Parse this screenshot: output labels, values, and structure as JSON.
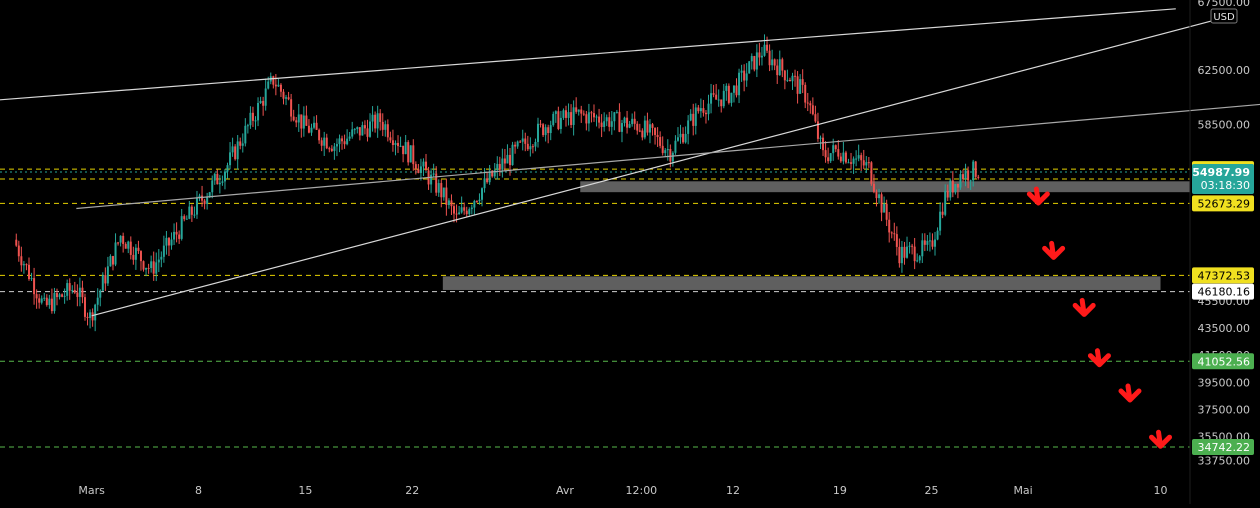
{
  "currency_label": "USD",
  "chart_data": {
    "type": "candlestick",
    "y_axis": {
      "range": [
        32900,
        67500
      ],
      "tick_labels": [
        "67500.00",
        "62500.00",
        "58500.00",
        "45500.00",
        "43500.00",
        "41500.00",
        "39500.00",
        "37500.00",
        "35500.00",
        "33750.00"
      ]
    },
    "x_axis": {
      "labels": [
        "Mars",
        "8",
        "15",
        "22",
        "Avr",
        "12:00",
        "12",
        "19",
        "25",
        "Mai",
        "10"
      ]
    },
    "current_price": {
      "value": 54987.99,
      "label": "54987.99",
      "countdown": "03:18:30"
    },
    "horizontal_levels": [
      {
        "value": 55199.53,
        "label": "55199.53",
        "style": "yellow"
      },
      {
        "value": 54472.51,
        "label": "54472.51",
        "style": "yellow"
      },
      {
        "value": 52673.29,
        "label": "52673.29",
        "style": "yellow"
      },
      {
        "value": 47372.53,
        "label": "47372.53",
        "style": "yellow"
      },
      {
        "value": 46180.16,
        "label": "46180.16",
        "style": "white"
      },
      {
        "value": 41052.56,
        "label": "41052.56",
        "style": "green"
      },
      {
        "value": 34742.22,
        "label": "34742.22",
        "style": "green"
      }
    ],
    "zones": [
      {
        "from": "2021-04-02",
        "to": "2021-05-15",
        "low": 53500,
        "high": 54300
      },
      {
        "from": "2021-03-24",
        "to": "2021-05-10",
        "low": 46300,
        "high": 47300
      }
    ],
    "trendlines": [
      {
        "p1": [
          "2021-02-23",
          60300
        ],
        "p2": [
          "2021-05-11",
          67000
        ],
        "color": "#d8d8d8"
      },
      {
        "p1": [
          "2021-03-01",
          44400
        ],
        "p2": [
          "2021-05-14",
          66300
        ],
        "color": "#d8d8d8"
      },
      {
        "p1": [
          "2021-02-28",
          52300
        ],
        "p2": [
          "2021-05-23",
          60600
        ],
        "color": "#a8a8a8"
      }
    ],
    "projection_arrows": [
      {
        "date": "2021-05-02",
        "value": 52700
      },
      {
        "date": "2021-05-03",
        "value": 48700
      },
      {
        "date": "2021-05-05",
        "value": 44500
      },
      {
        "date": "2021-05-06",
        "value": 40800
      },
      {
        "date": "2021-05-08",
        "value": 38200
      },
      {
        "date": "2021-05-10",
        "value": 34800
      }
    ],
    "key_prices": [
      [
        "2021-02-24",
        50000
      ],
      [
        "2021-02-26",
        45000
      ],
      [
        "2021-02-28",
        46500
      ],
      [
        "2021-03-01",
        44300
      ],
      [
        "2021-03-03",
        50300
      ],
      [
        "2021-03-05",
        47800
      ],
      [
        "2021-03-07",
        51000
      ],
      [
        "2021-03-10",
        55500
      ],
      [
        "2021-03-13",
        61800
      ],
      [
        "2021-03-15",
        58400
      ],
      [
        "2021-03-17",
        57000
      ],
      [
        "2021-03-20",
        58800
      ],
      [
        "2021-03-22",
        56200
      ],
      [
        "2021-03-24",
        53500
      ],
      [
        "2021-03-25",
        51500
      ],
      [
        "2021-03-28",
        55600
      ],
      [
        "2021-03-31",
        58600
      ],
      [
        "2021-04-02",
        59200
      ],
      [
        "2021-04-06",
        58400
      ],
      [
        "2021-04-08",
        56500
      ],
      [
        "2021-04-10",
        59800
      ],
      [
        "2021-04-12",
        60800
      ],
      [
        "2021-04-14",
        63900
      ],
      [
        "2021-04-16",
        61800
      ],
      [
        "2021-04-17",
        60400
      ],
      [
        "2021-04-18",
        56200
      ],
      [
        "2021-04-19",
        56600
      ],
      [
        "2021-04-21",
        55300
      ],
      [
        "2021-04-22",
        52000
      ],
      [
        "2021-04-23",
        49000
      ],
      [
        "2021-04-25",
        49300
      ],
      [
        "2021-04-26",
        53200
      ],
      [
        "2021-04-27",
        54800
      ],
      [
        "2021-04-28",
        55100
      ]
    ]
  }
}
